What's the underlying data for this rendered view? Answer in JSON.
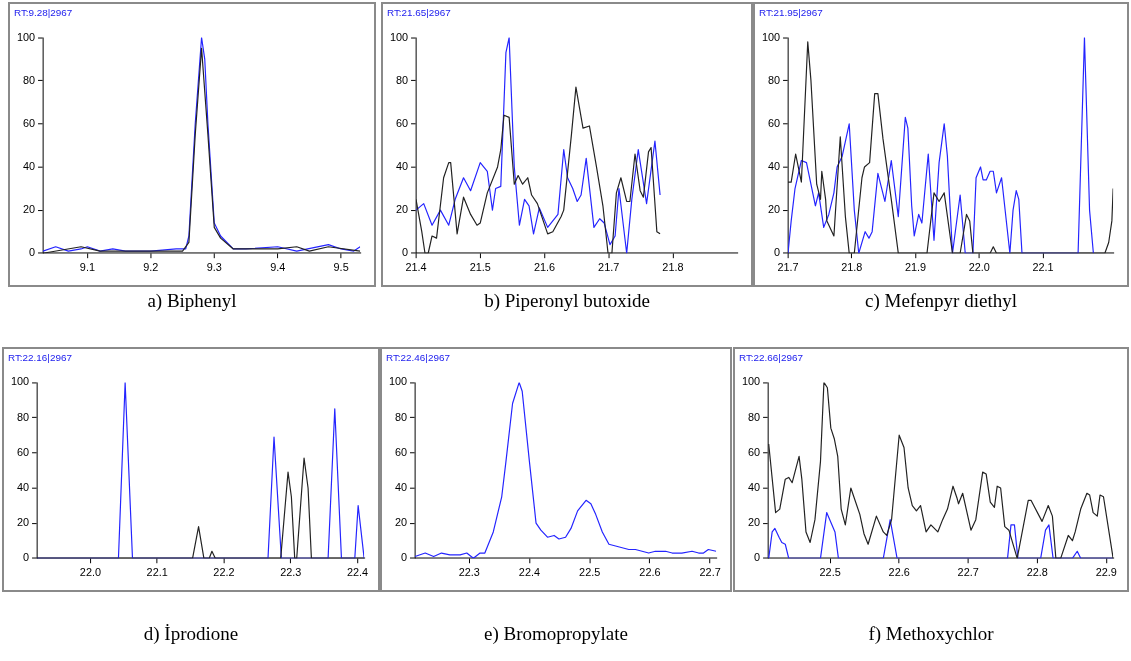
{
  "chart_data": [
    {
      "type": "line",
      "title": "a) Biphenyl",
      "annotations": [
        "RT:9.28|2967"
      ],
      "xlim": [
        9.03,
        9.53
      ],
      "xticks": [
        9.1,
        9.2,
        9.3,
        9.4,
        9.5
      ],
      "ylim": [
        0,
        100
      ],
      "yticks": [
        0,
        20,
        40,
        60,
        80,
        100
      ],
      "series": [
        {
          "color": "#222222",
          "x": [
            9.03,
            9.09,
            9.12,
            9.2,
            9.25,
            9.26,
            9.27,
            9.28,
            9.29,
            9.3,
            9.31,
            9.33,
            9.4,
            9.43,
            9.45,
            9.48,
            9.53
          ],
          "values": [
            0,
            3,
            1,
            1,
            1,
            5,
            55,
            95,
            55,
            12,
            7,
            2,
            2,
            3,
            1,
            3,
            1
          ]
        },
        {
          "color": "#2424ff",
          "x": [
            9.03,
            9.05,
            9.07,
            9.09,
            9.1,
            9.12,
            9.14,
            9.16,
            9.2,
            9.24,
            9.255,
            9.26,
            9.27,
            9.28,
            9.285,
            9.29,
            9.3,
            9.31,
            9.32,
            9.33,
            9.35,
            9.4,
            9.43,
            9.48,
            9.5,
            9.52,
            9.53
          ],
          "values": [
            1,
            3,
            1,
            2,
            3,
            1,
            2,
            1,
            1,
            2,
            2,
            8,
            60,
            100,
            90,
            60,
            14,
            8,
            5,
            2,
            2,
            3,
            1,
            4,
            2,
            1,
            3
          ]
        }
      ]
    },
    {
      "type": "line",
      "title": "b) Piperonyl butoxide",
      "annotations": [
        "RT:21.65|2967"
      ],
      "xlim": [
        21.4,
        21.9
      ],
      "xticks": [
        21.4,
        21.5,
        21.6,
        21.7,
        21.8
      ],
      "ylim": [
        0,
        100
      ],
      "yticks": [
        0,
        20,
        40,
        60,
        80,
        100
      ],
      "series": [
        {
          "color": "#222222",
          "x": [
            21.4,
            21.409,
            21.414,
            21.419,
            21.425,
            21.432,
            21.443,
            21.451,
            21.454,
            21.464,
            21.474,
            21.485,
            21.495,
            21.5,
            21.511,
            21.527,
            21.532,
            21.537,
            21.545,
            21.553,
            21.559,
            21.566,
            21.574,
            21.58,
            21.589,
            21.605,
            21.613,
            21.626,
            21.63,
            21.642,
            21.649,
            21.66,
            21.67,
            21.681,
            21.691,
            21.699,
            21.705,
            21.712,
            21.719,
            21.728,
            21.733,
            21.741,
            21.749,
            21.754,
            21.762,
            21.766,
            21.775,
            21.78
          ],
          "values": [
            25,
            10,
            0,
            0,
            8,
            7,
            35,
            42,
            42,
            9,
            26,
            18,
            13,
            14,
            28,
            40,
            48,
            64,
            63,
            32,
            36,
            32,
            35,
            27,
            23,
            9,
            10,
            17,
            20,
            55,
            77,
            58,
            59,
            40,
            22,
            0,
            0,
            28,
            35,
            24,
            24,
            46,
            29,
            26,
            47,
            49,
            10,
            9
          ]
        },
        {
          "color": "#2424ff",
          "x": [
            21.4,
            21.412,
            21.425,
            21.438,
            21.451,
            21.461,
            21.474,
            21.485,
            21.5,
            21.511,
            21.519,
            21.524,
            21.532,
            21.54,
            21.545,
            21.553,
            21.561,
            21.569,
            21.576,
            21.583,
            21.592,
            21.605,
            21.621,
            21.63,
            21.636,
            21.644,
            21.651,
            21.657,
            21.665,
            21.677,
            21.686,
            21.693,
            21.702,
            21.71,
            21.716,
            21.728,
            21.736,
            21.746,
            21.759,
            21.772,
            21.78
          ],
          "values": [
            20,
            23,
            13,
            20,
            13,
            25,
            35,
            29,
            42,
            38,
            20,
            30,
            31,
            93,
            100,
            40,
            13,
            25,
            22,
            9,
            21,
            12,
            18,
            48,
            35,
            30,
            24,
            27,
            44,
            12,
            16,
            14,
            4,
            8,
            30,
            0,
            25,
            48,
            23,
            52,
            27
          ]
        }
      ]
    },
    {
      "type": "line",
      "title": "c) Mefenpyr diethyl",
      "annotations": [
        "RT:21.95|2967"
      ],
      "xlim": [
        21.7,
        22.21
      ],
      "xticks": [
        21.7,
        21.8,
        21.9,
        {
          "value": 22,
          "label": "22.0"
        },
        22.1
      ],
      "ylim": [
        0,
        100
      ],
      "yticks": [
        0,
        20,
        40,
        60,
        80,
        100
      ],
      "series": [
        {
          "color": "#222222",
          "x": [
            21.7,
            21.705,
            21.712,
            21.721,
            21.731,
            21.736,
            21.745,
            21.751,
            21.753,
            21.759,
            21.761,
            21.772,
            21.782,
            21.79,
            21.796,
            21.804,
            21.816,
            21.82,
            21.828,
            21.836,
            21.841,
            21.849,
            21.862,
            21.873,
            21.918,
            21.929,
            21.937,
            21.945,
            21.958,
            21.97,
            21.98,
            21.985,
            21.99,
            22.017,
            22.022,
            22.027,
            22.197,
            22.203,
            22.208,
            22.21
          ],
          "values": [
            33,
            33,
            46,
            33,
            98,
            80,
            32,
            25,
            38,
            25,
            15,
            8,
            54,
            17,
            0,
            0,
            35,
            40,
            42,
            74,
            74,
            53,
            25,
            0,
            0,
            28,
            24,
            28,
            0,
            0,
            18,
            15,
            0,
            0,
            3,
            0,
            0,
            5,
            15,
            30
          ]
        },
        {
          "color": "#2424ff",
          "x": [
            21.7,
            21.705,
            21.711,
            21.721,
            21.729,
            21.743,
            21.748,
            21.756,
            21.764,
            21.772,
            21.777,
            21.785,
            21.796,
            21.804,
            21.811,
            21.821,
            21.827,
            21.832,
            21.841,
            21.852,
            21.862,
            21.873,
            21.884,
            21.888,
            21.894,
            21.898,
            21.905,
            21.91,
            21.92,
            21.929,
            21.937,
            21.945,
            21.95,
            21.958,
            21.97,
            21.978,
            21.99,
            21.995,
            22.002,
            22.006,
            22.011,
            22.017,
            22.022,
            22.027,
            22.035,
            22.048,
            22.053,
            22.058,
            22.062,
            22.067,
            22.155,
            22.165,
            22.173,
            22.179
          ],
          "values": [
            0,
            15,
            30,
            43,
            42,
            22,
            28,
            12,
            18,
            28,
            40,
            45,
            60,
            20,
            0,
            10,
            7,
            10,
            37,
            24,
            43,
            17,
            63,
            58,
            22,
            8,
            18,
            14,
            46,
            6,
            42,
            60,
            45,
            0,
            27,
            0,
            0,
            35,
            40,
            34,
            34,
            38,
            38,
            28,
            35,
            0,
            20,
            29,
            25,
            0,
            0,
            100,
            20,
            0
          ]
        }
      ]
    },
    {
      "type": "line",
      "title": "d) İprodione",
      "annotations": [
        "RT:22.16|2967"
      ],
      "xlim": [
        21.92,
        22.41
      ],
      "xticks": [
        {
          "value": 22,
          "label": "22.0"
        },
        22.1,
        22.2,
        22.3,
        22.4
      ],
      "ylim": [
        0,
        100
      ],
      "yticks": [
        0,
        20,
        40,
        60,
        80,
        100
      ],
      "series": [
        {
          "color": "#222222",
          "x": [
            21.92,
            22.153,
            22.162,
            22.17,
            22.178,
            22.182,
            22.187,
            22.285,
            22.296,
            22.301,
            22.306,
            22.309,
            22.32,
            22.326,
            22.331,
            22.41
          ],
          "values": [
            0,
            0,
            18,
            0,
            0,
            4,
            0,
            0,
            49,
            35,
            0,
            0,
            57,
            40,
            0,
            0
          ]
        },
        {
          "color": "#2424ff",
          "x": [
            21.92,
            22.042,
            22.052,
            22.063,
            22.266,
            22.275,
            22.286,
            22.356,
            22.366,
            22.376,
            22.396,
            22.401,
            22.41
          ],
          "values": [
            0,
            0,
            100,
            0,
            0,
            69,
            0,
            0,
            85,
            0,
            0,
            30,
            0
          ]
        }
      ]
    },
    {
      "type": "line",
      "title": "e) Bromopropylate",
      "annotations": [
        "RT:22.46|2967"
      ],
      "xlim": [
        22.21,
        22.71
      ],
      "xticks": [
        22.3,
        22.4,
        22.5,
        22.6,
        22.7
      ],
      "ylim": [
        0,
        100
      ],
      "yticks": [
        0,
        20,
        40,
        60,
        80,
        100
      ],
      "series": [
        {
          "color": "#2424ff",
          "x": [
            22.21,
            22.227,
            22.241,
            22.254,
            22.268,
            22.285,
            22.296,
            22.307,
            22.318,
            22.326,
            22.34,
            22.354,
            22.361,
            22.372,
            22.383,
            22.388,
            22.4,
            22.411,
            22.419,
            22.43,
            22.441,
            22.449,
            22.46,
            22.469,
            22.48,
            22.494,
            22.502,
            22.51,
            22.521,
            22.532,
            22.543,
            22.554,
            22.565,
            22.576,
            22.587,
            22.598,
            22.609,
            22.626,
            22.637,
            22.653,
            22.67,
            22.681,
            22.689,
            22.697,
            22.71
          ],
          "values": [
            1,
            3,
            1,
            3,
            2,
            2,
            3,
            0,
            3,
            3,
            15,
            35,
            55,
            88,
            100,
            95,
            55,
            20,
            16,
            12,
            13,
            11,
            12,
            17,
            27,
            33,
            31,
            25,
            15,
            8,
            7,
            6,
            5,
            5,
            4,
            3,
            4,
            4,
            3,
            3,
            4,
            3,
            3,
            5,
            4
          ]
        }
      ]
    },
    {
      "type": "line",
      "title": "f) Methoxychlor",
      "annotations": [
        "RT:22.66|2967"
      ],
      "xlim": [
        22.41,
        22.91
      ],
      "xticks": [
        22.5,
        22.6,
        22.7,
        22.8,
        22.9
      ],
      "ylim": [
        0,
        100
      ],
      "yticks": [
        0,
        20,
        40,
        60,
        80,
        100
      ],
      "series": [
        {
          "color": "#222222",
          "x": [
            22.411,
            22.421,
            22.427,
            22.435,
            22.44,
            22.445,
            22.455,
            22.459,
            22.465,
            22.471,
            22.478,
            22.486,
            22.491,
            22.496,
            22.501,
            22.506,
            22.511,
            22.516,
            22.522,
            22.53,
            22.543,
            22.549,
            22.555,
            22.567,
            22.577,
            22.582,
            22.589,
            22.6,
            22.607,
            22.613,
            22.619,
            22.625,
            22.631,
            22.639,
            22.646,
            22.656,
            22.663,
            22.67,
            22.678,
            22.684,
            22.686,
            22.692,
            22.704,
            22.711,
            22.721,
            22.726,
            22.732,
            22.738,
            22.742,
            22.747,
            22.753,
            22.759,
            22.771,
            22.787,
            22.791,
            22.803,
            22.807,
            22.816,
            22.822,
            22.827,
            22.834,
            22.845,
            22.851,
            22.855,
            22.863,
            22.872,
            22.876,
            22.881,
            22.887,
            22.891,
            22.896,
            22.91
          ],
          "values": [
            65,
            26,
            28,
            45,
            46,
            43,
            58,
            45,
            15,
            9,
            22,
            55,
            100,
            97,
            74,
            68,
            58,
            28,
            19,
            40,
            25,
            14,
            8,
            24,
            15,
            13,
            22,
            70,
            63,
            40,
            30,
            27,
            30,
            15,
            19,
            15,
            22,
            28,
            41,
            34,
            31,
            37,
            16,
            22,
            49,
            48,
            32,
            29,
            41,
            40,
            18,
            16,
            0,
            33,
            33,
            24,
            21,
            30,
            24,
            0,
            0,
            13,
            10,
            15,
            28,
            37,
            36,
            26,
            24,
            36,
            35,
            0
          ]
        },
        {
          "color": "#2424ff",
          "x": [
            22.411,
            22.416,
            22.42,
            22.426,
            22.43,
            22.435,
            22.44,
            22.486,
            22.495,
            22.507,
            22.512,
            22.577,
            22.587,
            22.597,
            22.757,
            22.762,
            22.767,
            22.772,
            22.805,
            22.812,
            22.817,
            22.823,
            22.851,
            22.858,
            22.863,
            22.91
          ],
          "values": [
            0,
            15,
            17,
            12,
            9,
            8,
            0,
            0,
            26,
            15,
            0,
            0,
            22,
            0,
            0,
            19,
            19,
            0,
            0,
            16,
            19,
            0,
            0,
            4,
            0,
            0
          ]
        }
      ]
    }
  ]
}
